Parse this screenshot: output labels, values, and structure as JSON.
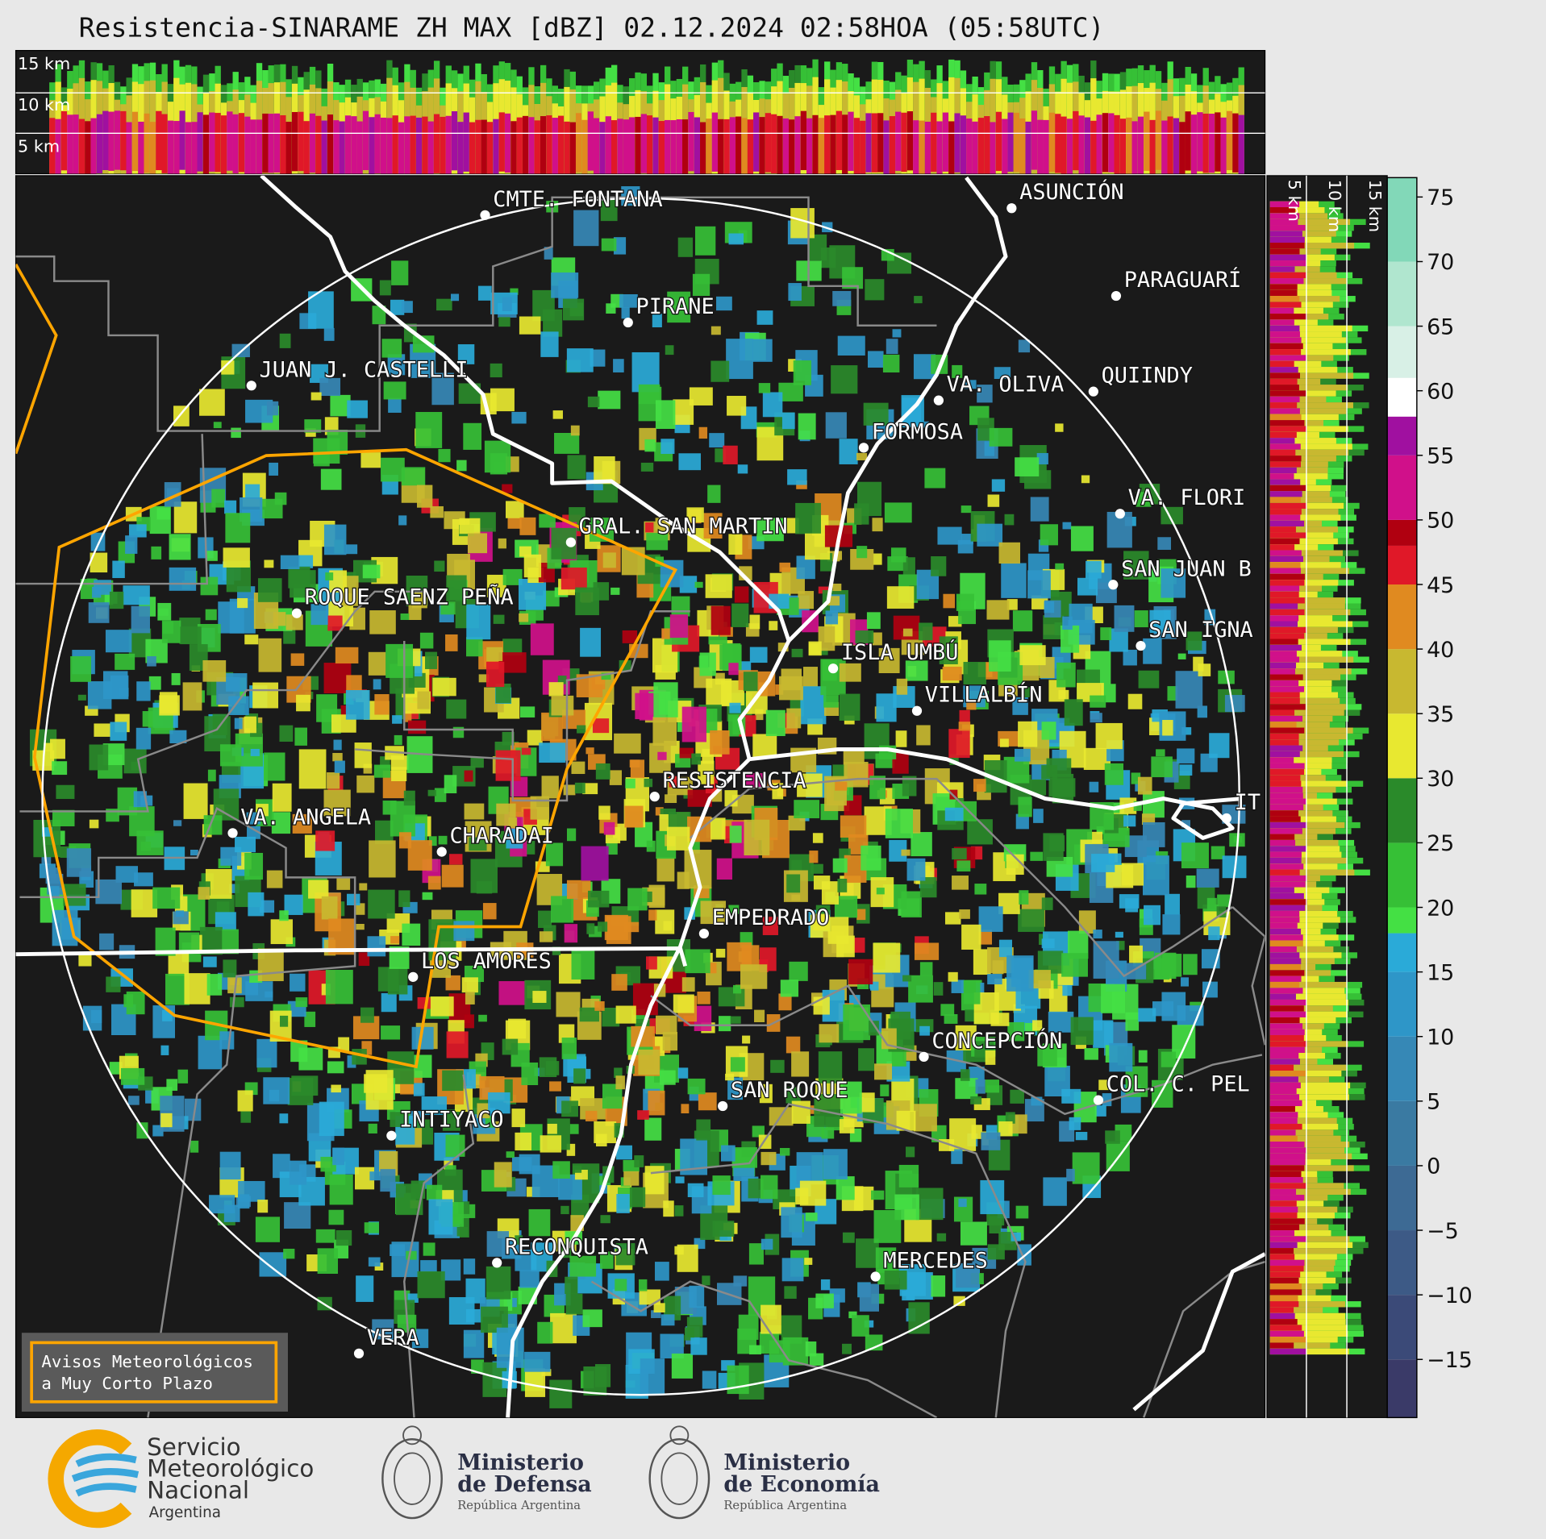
{
  "title": "Resistencia-SINARAME ZH MAX [dBZ] 02.12.2024 02:58HOA (05:58UTC)",
  "height_labels": [
    "15 km",
    "10 km",
    "5 km"
  ],
  "side_height_labels": [
    "5 km",
    "10 km",
    "15 km"
  ],
  "cities": [
    "CMTE. FONTANA",
    "PIRANE",
    "JUAN J. CASTELLI",
    "ASUNCIÓN",
    "PARAGUARÍ",
    "VA. OLIVA",
    "QUIINDY",
    "FORMOSA",
    "VA. FLORI",
    "SAN JUAN B",
    "SAN IGNA",
    "GRAL. SAN MARTIN",
    "ROQUE SAENZ PEÑA",
    "ISLA UMBÚ",
    "VILLALBÍN",
    "RESISTENCIA",
    "IT",
    "VA. ANGELA",
    "CHARADAI",
    "EMPEDRADO",
    "LOS AMORES",
    "CONCEPCIÓN",
    "COL. C. PEL",
    "SAN ROQUE",
    "INTIYACO",
    "RECONQUISTA",
    "MERCEDES",
    "VERA"
  ],
  "colorbar": {
    "bounds": [
      -19.5,
      -15,
      -10,
      -5,
      0,
      5,
      10,
      15,
      18,
      20,
      25,
      30,
      35,
      40,
      45,
      48,
      50,
      55,
      58,
      61,
      65,
      70,
      76.5
    ],
    "colors": [
      "#3a3a68",
      "#3b4a78",
      "#3d5a86",
      "#3d6a94",
      "#3a7aa2",
      "#3688b6",
      "#2e96c8",
      "#2aaad8",
      "#44e044",
      "#36c036",
      "#2a8a2a",
      "#e8e830",
      "#c8b830",
      "#e08a20",
      "#e01828",
      "#b00010",
      "#d0108a",
      "#a010a0",
      "#ffffff",
      "#d8f0e6",
      "#b0e6cf",
      "#82d8b8"
    ],
    "ticks": [
      75,
      70,
      65,
      60,
      55,
      50,
      45,
      40,
      35,
      30,
      25,
      20,
      15,
      10,
      5,
      0,
      {
        "value": -5,
        "label": "−5"
      },
      {
        "value": -10,
        "label": "−10"
      },
      {
        "value": -15,
        "label": "−15"
      }
    ]
  },
  "warning_box": [
    "Avisos Meteorológicos",
    "a Muy Corto Plazo"
  ],
  "logos": [
    {
      "lines": [
        "Servicio",
        "Meteorológico",
        "Nacional"
      ],
      "sub": "Argentina"
    },
    {
      "lines": [
        "Ministerio",
        "de Defensa"
      ],
      "sub": "República Argentina"
    },
    {
      "lines": [
        "Ministerio",
        "de Economía"
      ],
      "sub": "República Argentina"
    }
  ]
}
